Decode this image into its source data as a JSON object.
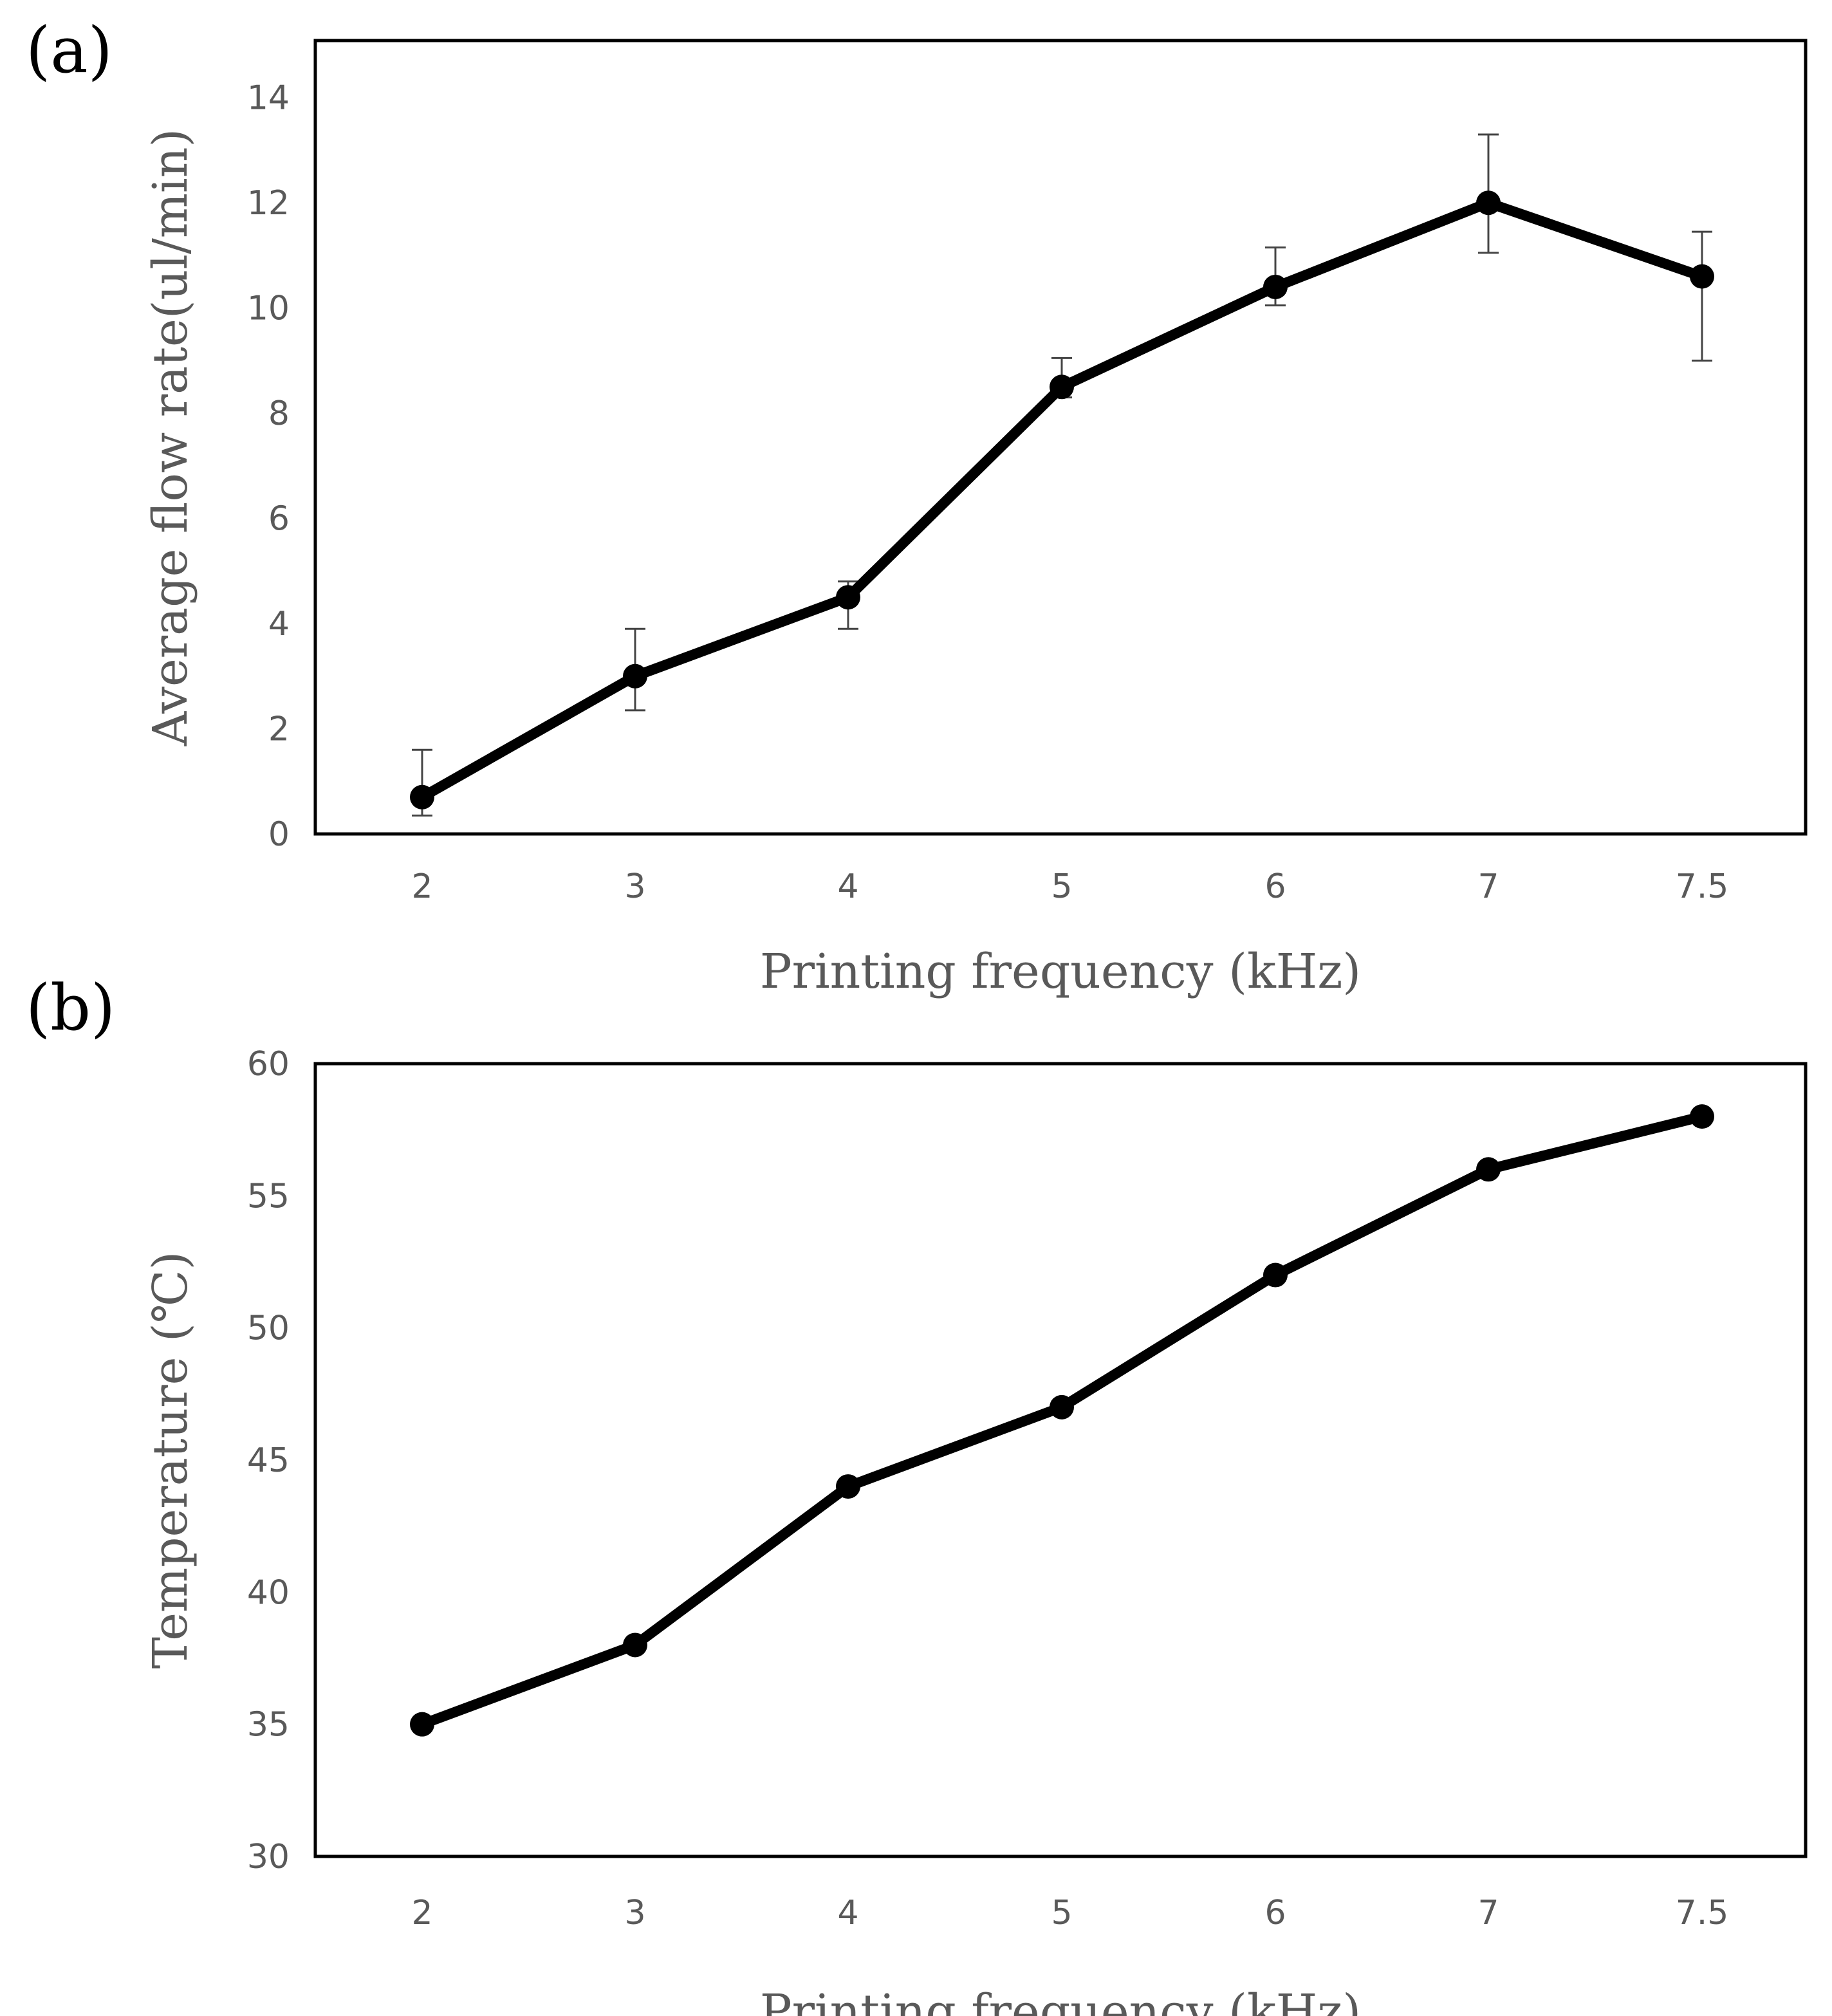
{
  "chart_data": [
    {
      "panel_label": "(a)",
      "type": "line",
      "categories": [
        "2",
        "3",
        "4",
        "5",
        "6",
        "7",
        "7.5"
      ],
      "series": [
        {
          "name": "Average flow rate",
          "values": [
            0.7,
            3.0,
            4.5,
            8.5,
            10.4,
            12.0,
            10.6
          ],
          "error_low": [
            0.35,
            2.35,
            3.9,
            8.3,
            10.05,
            11.05,
            9.0
          ],
          "error_high": [
            1.6,
            3.9,
            4.8,
            9.05,
            11.15,
            13.3,
            11.45
          ]
        }
      ],
      "title": "",
      "xlabel": "Printing frequency (kHz)",
      "ylabel": "Average flow rate(ul/min)",
      "ylim": [
        0,
        15
      ],
      "yticks": [
        "0",
        "2",
        "4",
        "6",
        "8",
        "10",
        "12",
        "14"
      ],
      "grid": false,
      "line_color": "#000000"
    },
    {
      "panel_label": "(b)",
      "type": "line",
      "categories": [
        "2",
        "3",
        "4",
        "5",
        "6",
        "7",
        "7.5"
      ],
      "series": [
        {
          "name": "Temperature",
          "values": [
            35,
            38,
            44,
            47,
            52,
            56,
            58
          ]
        }
      ],
      "title": "",
      "xlabel": "Printing frequency (kHz)",
      "ylabel": "Temperature (℃)",
      "ylim": [
        30,
        60
      ],
      "yticks": [
        "30",
        "35",
        "40",
        "45",
        "50",
        "55",
        "60"
      ],
      "grid": false,
      "line_color": "#000000"
    }
  ]
}
